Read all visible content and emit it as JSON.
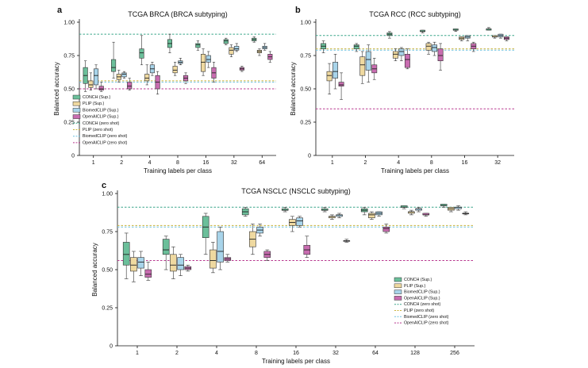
{
  "colors": {
    "conch": "#6bbf9a",
    "plip": "#efd9a0",
    "biomedclip": "#a8d4ea",
    "openai": "#c86cb0",
    "conch_line": "#3aa68a",
    "plip_line": "#c9b23a",
    "biomedclip_line": "#6ec1df",
    "openai_line": "#b8388f"
  },
  "legend": [
    {
      "key": "conch",
      "label": "CONCH (Sup.)",
      "kind": "box"
    },
    {
      "key": "plip",
      "label": "PLIP (Sup.)",
      "kind": "box"
    },
    {
      "key": "biomedclip",
      "label": "BiomedCLIP (Sup.)",
      "kind": "box"
    },
    {
      "key": "openai",
      "label": "OpenAICLIP (Sup.)",
      "kind": "box"
    },
    {
      "key": "conch",
      "label": "CONCH (zero shot)",
      "kind": "line"
    },
    {
      "key": "plip",
      "label": "PLIP (zero shot)",
      "kind": "line"
    },
    {
      "key": "biomedclip",
      "label": "BiomedCLIP (zero shot)",
      "kind": "line"
    },
    {
      "key": "openai",
      "label": "OpenAICLIP (zero shot)",
      "kind": "line"
    }
  ],
  "chart_data": [
    {
      "panel": "a",
      "type": "box",
      "title": "TCGA BRCA (BRCA subtyping)",
      "xlabel": "Training labels per class",
      "ylabel": "Balanced accuracy",
      "categories": [
        "1",
        "2",
        "4",
        "8",
        "16",
        "32",
        "64"
      ],
      "ylim": [
        0,
        1
      ],
      "yticks": [
        "0",
        "0.25",
        "0.50",
        "0.75",
        "1.00"
      ],
      "zero_shot": {
        "conch": 0.91,
        "plip": 0.56,
        "biomedclip": 0.55,
        "openai": 0.5
      },
      "series": [
        {
          "key": "conch",
          "name": "CONCH (Sup.)",
          "boxes": [
            [
              0.48,
              0.54,
              0.6,
              0.66,
              0.71
            ],
            [
              0.58,
              0.63,
              0.66,
              0.72,
              0.85
            ],
            [
              0.68,
              0.73,
              0.77,
              0.8,
              0.9
            ],
            [
              0.77,
              0.81,
              0.84,
              0.87,
              0.91
            ],
            [
              0.79,
              0.81,
              0.83,
              0.84,
              0.86
            ],
            [
              0.83,
              0.84,
              0.86,
              0.87,
              0.88
            ],
            [
              0.85,
              0.86,
              0.87,
              0.88,
              0.89
            ]
          ]
        },
        {
          "key": "plip",
          "name": "PLIP (Sup.)",
          "boxes": [
            [
              0.49,
              0.51,
              0.53,
              0.56,
              0.62
            ],
            [
              0.55,
              0.57,
              0.59,
              0.61,
              0.64
            ],
            [
              0.53,
              0.56,
              0.58,
              0.61,
              0.68
            ],
            [
              0.6,
              0.62,
              0.64,
              0.67,
              0.7
            ],
            [
              0.6,
              0.63,
              0.7,
              0.76,
              0.8
            ],
            [
              0.74,
              0.76,
              0.79,
              0.81,
              0.83
            ],
            [
              0.75,
              0.77,
              0.78,
              0.79,
              0.8
            ]
          ]
        },
        {
          "key": "biomedclip",
          "name": "BiomedCLIP (Sup.)",
          "boxes": [
            [
              0.5,
              0.53,
              0.6,
              0.65,
              0.68
            ],
            [
              0.58,
              0.59,
              0.61,
              0.62,
              0.63
            ],
            [
              0.6,
              0.62,
              0.65,
              0.68,
              0.7
            ],
            [
              0.68,
              0.69,
              0.7,
              0.71,
              0.73
            ],
            [
              0.66,
              0.7,
              0.72,
              0.75,
              0.78
            ],
            [
              0.78,
              0.79,
              0.8,
              0.82,
              0.84
            ],
            [
              0.79,
              0.8,
              0.81,
              0.82,
              0.84
            ]
          ]
        },
        {
          "key": "openai",
          "name": "OpenAICLIP (Sup.)",
          "boxes": [
            [
              0.48,
              0.49,
              0.5,
              0.52,
              0.55
            ],
            [
              0.49,
              0.5,
              0.52,
              0.55,
              0.58
            ],
            [
              0.46,
              0.5,
              0.55,
              0.6,
              0.63
            ],
            [
              0.54,
              0.56,
              0.58,
              0.6,
              0.62
            ],
            [
              0.55,
              0.58,
              0.62,
              0.66,
              0.7
            ],
            [
              0.63,
              0.64,
              0.65,
              0.66,
              0.67
            ],
            [
              0.7,
              0.72,
              0.74,
              0.76,
              0.78
            ]
          ]
        }
      ]
    },
    {
      "panel": "b",
      "type": "box",
      "title": "TCGA RCC (RCC subtyping)",
      "xlabel": "Training labels per class",
      "ylabel": "Balanced accuracy",
      "categories": [
        "1",
        "2",
        "4",
        "8",
        "16",
        "32"
      ],
      "ylim": [
        0,
        1
      ],
      "yticks": [
        "0",
        "0.25",
        "0.50",
        "0.75",
        "1.00"
      ],
      "zero_shot": {
        "conch": 0.9,
        "plip": 0.8,
        "biomedclip": 0.79,
        "openai": 0.35
      },
      "series": [
        {
          "key": "conch",
          "name": "CONCH (Sup.)",
          "boxes": [
            [
              0.77,
              0.8,
              0.82,
              0.84,
              0.86
            ],
            [
              0.78,
              0.8,
              0.82,
              0.83,
              0.84
            ],
            [
              0.88,
              0.9,
              0.91,
              0.92,
              0.93
            ],
            [
              0.92,
              0.93,
              0.93,
              0.94,
              0.94
            ],
            [
              0.93,
              0.94,
              0.94,
              0.95,
              0.95
            ],
            [
              0.94,
              0.94,
              0.95,
              0.95,
              0.96
            ]
          ]
        },
        {
          "key": "plip",
          "name": "PLIP (Sup.)",
          "boxes": [
            [
              0.46,
              0.56,
              0.6,
              0.63,
              0.69
            ],
            [
              0.54,
              0.6,
              0.68,
              0.74,
              0.78
            ],
            [
              0.71,
              0.73,
              0.76,
              0.78,
              0.8
            ],
            [
              0.76,
              0.79,
              0.82,
              0.84,
              0.85
            ],
            [
              0.86,
              0.87,
              0.88,
              0.89,
              0.89
            ],
            [
              0.88,
              0.89,
              0.89,
              0.9,
              0.9
            ]
          ]
        },
        {
          "key": "biomedclip",
          "name": "BiomedCLIP (Sup.)",
          "boxes": [
            [
              0.5,
              0.58,
              0.63,
              0.7,
              0.76
            ],
            [
              0.55,
              0.64,
              0.72,
              0.78,
              0.83
            ],
            [
              0.71,
              0.75,
              0.78,
              0.8,
              0.81
            ],
            [
              0.75,
              0.78,
              0.81,
              0.83,
              0.85
            ],
            [
              0.86,
              0.88,
              0.89,
              0.9,
              0.9
            ],
            [
              0.88,
              0.89,
              0.9,
              0.91,
              0.91
            ]
          ]
        },
        {
          "key": "openai",
          "name": "OpenAICLIP (Sup.)",
          "boxes": [
            [
              0.42,
              0.52,
              0.53,
              0.55,
              0.62
            ],
            [
              0.57,
              0.62,
              0.65,
              0.68,
              0.73
            ],
            [
              0.65,
              0.66,
              0.72,
              0.76,
              0.8
            ],
            [
              0.64,
              0.71,
              0.75,
              0.8,
              0.84
            ],
            [
              0.78,
              0.8,
              0.82,
              0.84,
              0.85
            ],
            [
              0.86,
              0.87,
              0.88,
              0.89,
              0.89
            ]
          ]
        }
      ]
    },
    {
      "panel": "c",
      "type": "box",
      "title": "TCGA NSCLC (NSCLC subtyping)",
      "xlabel": "Training labels per class",
      "ylabel": "Balanced accuracy",
      "categories": [
        "1",
        "2",
        "4",
        "8",
        "16",
        "32",
        "64",
        "128",
        "256"
      ],
      "ylim": [
        0,
        1
      ],
      "yticks": [
        "0",
        "0.25",
        "0.50",
        "0.75",
        "1.00"
      ],
      "zero_shot": {
        "conch": 0.91,
        "plip": 0.79,
        "biomedclip": 0.78,
        "openai": 0.56
      },
      "series": [
        {
          "key": "conch",
          "name": "CONCH (Sup.)",
          "boxes": [
            [
              0.44,
              0.53,
              0.6,
              0.68,
              0.74
            ],
            [
              0.5,
              0.6,
              0.63,
              0.7,
              0.72
            ],
            [
              0.6,
              0.71,
              0.78,
              0.85,
              0.87
            ],
            [
              0.85,
              0.86,
              0.88,
              0.9,
              0.91
            ],
            [
              0.88,
              0.89,
              0.89,
              0.9,
              0.91
            ],
            [
              0.88,
              0.89,
              0.89,
              0.9,
              0.91
            ],
            [
              0.86,
              0.88,
              0.89,
              0.9,
              0.91
            ],
            [
              0.9,
              0.91,
              0.91,
              0.92,
              0.92
            ],
            [
              0.91,
              0.92,
              0.92,
              0.93,
              0.93
            ]
          ]
        },
        {
          "key": "plip",
          "name": "PLIP (Sup.)",
          "boxes": [
            [
              0.42,
              0.49,
              0.53,
              0.58,
              0.62
            ],
            [
              0.44,
              0.49,
              0.53,
              0.6,
              0.65
            ],
            [
              0.48,
              0.51,
              0.56,
              0.63,
              0.68
            ],
            [
              0.6,
              0.65,
              0.7,
              0.75,
              0.8
            ],
            [
              0.75,
              0.79,
              0.81,
              0.83,
              0.85
            ],
            [
              0.83,
              0.84,
              0.85,
              0.85,
              0.86
            ],
            [
              0.83,
              0.84,
              0.86,
              0.87,
              0.88
            ],
            [
              0.86,
              0.87,
              0.88,
              0.88,
              0.89
            ],
            [
              0.88,
              0.89,
              0.9,
              0.91,
              0.91
            ]
          ]
        },
        {
          "key": "biomedclip",
          "name": "BiomedCLIP (Sup.)",
          "boxes": [
            [
              0.46,
              0.51,
              0.55,
              0.58,
              0.62
            ],
            [
              0.46,
              0.5,
              0.53,
              0.58,
              0.6
            ],
            [
              0.5,
              0.55,
              0.62,
              0.75,
              0.78
            ],
            [
              0.72,
              0.74,
              0.76,
              0.78,
              0.8
            ],
            [
              0.78,
              0.79,
              0.82,
              0.84,
              0.85
            ],
            [
              0.84,
              0.85,
              0.86,
              0.86,
              0.87
            ],
            [
              0.85,
              0.86,
              0.87,
              0.88,
              0.88
            ],
            [
              0.88,
              0.89,
              0.9,
              0.9,
              0.91
            ],
            [
              0.89,
              0.9,
              0.91,
              0.91,
              0.92
            ]
          ]
        },
        {
          "key": "openai",
          "name": "OpenAICLIP (Sup.)",
          "boxes": [
            [
              0.43,
              0.45,
              0.47,
              0.5,
              0.55
            ],
            [
              0.49,
              0.5,
              0.51,
              0.52,
              0.53
            ],
            [
              0.55,
              0.56,
              0.57,
              0.58,
              0.6
            ],
            [
              0.56,
              0.58,
              0.6,
              0.62,
              0.63
            ],
            [
              0.58,
              0.6,
              0.63,
              0.66,
              0.72
            ],
            [
              0.68,
              0.69,
              0.69,
              0.69,
              0.7
            ],
            [
              0.74,
              0.75,
              0.77,
              0.78,
              0.8
            ],
            [
              0.85,
              0.86,
              0.86,
              0.87,
              0.87
            ],
            [
              0.86,
              0.87,
              0.87,
              0.87,
              0.88
            ]
          ]
        }
      ]
    }
  ]
}
